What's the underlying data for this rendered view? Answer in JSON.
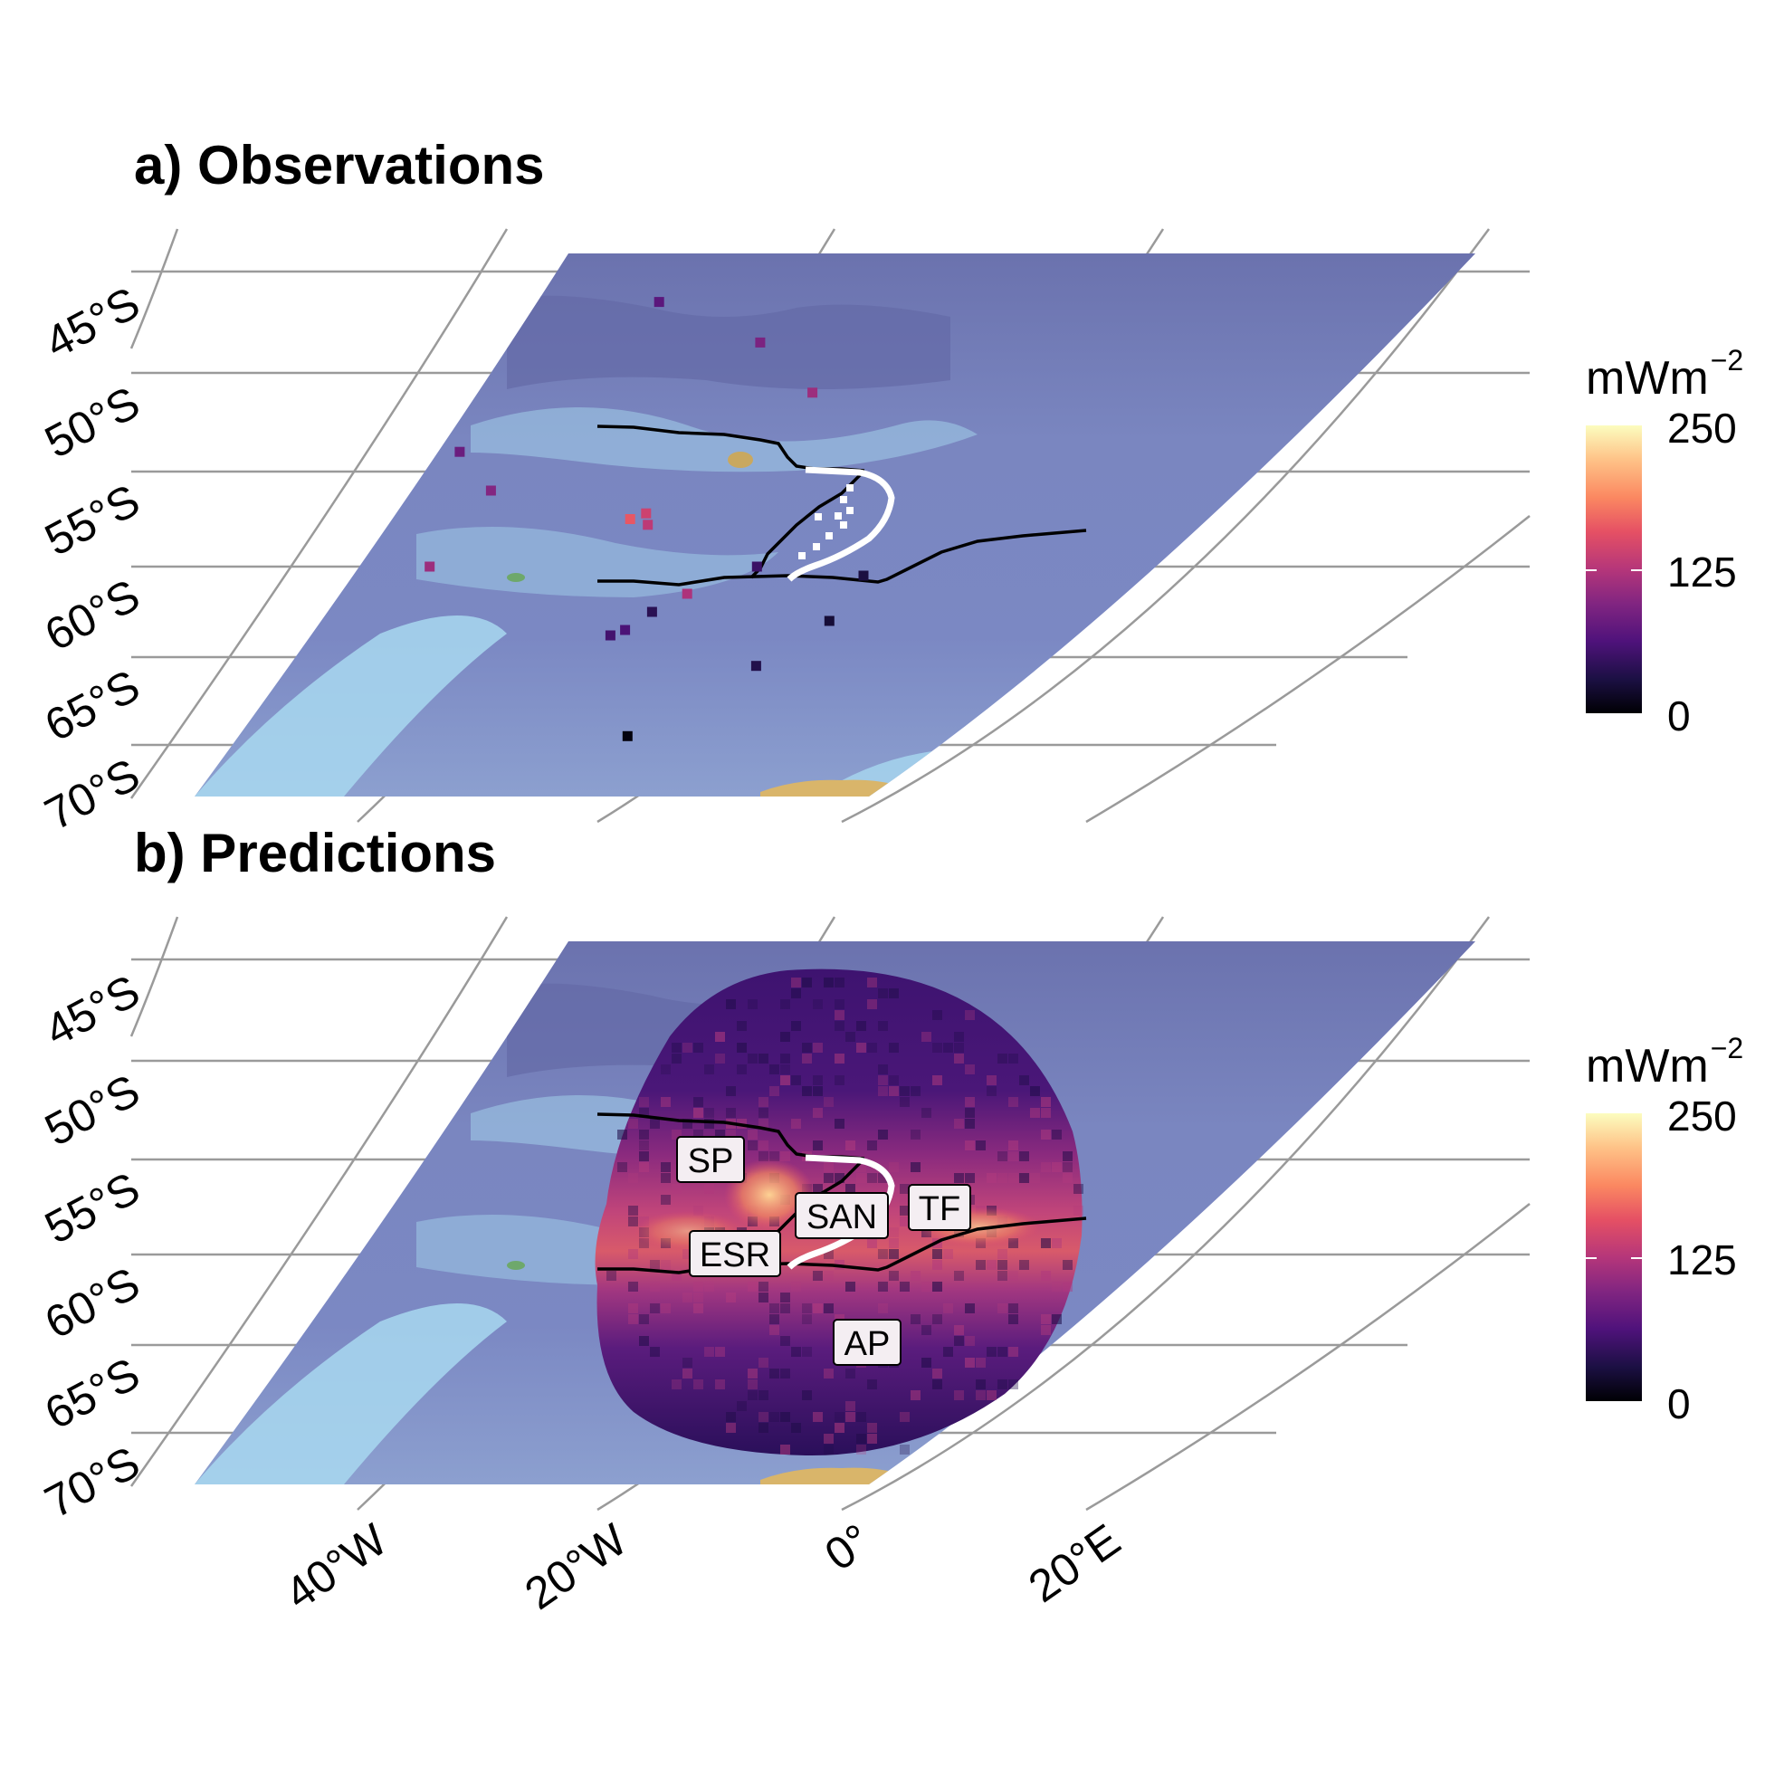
{
  "panels": [
    {
      "title": "a) Observations"
    },
    {
      "title": "b) Predictions"
    }
  ],
  "legend": {
    "unit": "mWm",
    "unit_exponent": "−2",
    "ticks": [
      "250",
      "125",
      "0"
    ],
    "colormap": [
      "#000004",
      "#1c1044",
      "#4f127b",
      "#812581",
      "#b5367a",
      "#e55064",
      "#fb8861",
      "#fec287",
      "#fcfdbf"
    ]
  },
  "axes": {
    "lat_labels": [
      "45°S",
      "50°S",
      "55°S",
      "60°S",
      "65°S",
      "70°S"
    ],
    "lon_labels": [
      "40°W",
      "20°W",
      "0°",
      "20°E"
    ]
  },
  "region_labels": [
    "SP",
    "SAN",
    "TF",
    "ESR",
    "AP"
  ],
  "colors": {
    "ocean_deep": "#6c74b0",
    "ocean_mid": "#7e8cc4",
    "shelf": "#a5d6ee",
    "boundary_line": "#000000",
    "arc_line": "#ffffff",
    "graticule": "#999999"
  },
  "chart_data": {
    "type": "heatmap",
    "colorbar_range": [
      0,
      250
    ],
    "colorbar_ticks": [
      0,
      125,
      250
    ],
    "observations": [
      {
        "lon": -10.0,
        "lat": -46.5,
        "value": 70
      },
      {
        "lon": -2.5,
        "lat": -48.5,
        "value": 90
      },
      {
        "lon": 2.5,
        "lat": -51.0,
        "value": 110
      },
      {
        "lon": -20.0,
        "lat": -54.0,
        "value": 80
      },
      {
        "lon": -17.0,
        "lat": -56.0,
        "value": 95
      },
      {
        "lon": -20.0,
        "lat": -60.0,
        "value": 110
      },
      {
        "lon": -6.0,
        "lat": -57.5,
        "value": 160
      },
      {
        "lon": -5.0,
        "lat": -57.2,
        "value": 140
      },
      {
        "lon": -4.5,
        "lat": -57.8,
        "value": 130
      },
      {
        "lon": 5.0,
        "lat": -60.0,
        "value": 50
      },
      {
        "lon": 13.0,
        "lat": -60.5,
        "value": 30
      },
      {
        "lon": 1.0,
        "lat": -61.5,
        "value": 120
      },
      {
        "lon": -1.0,
        "lat": -62.5,
        "value": 40
      },
      {
        "lon": 12.5,
        "lat": -63.0,
        "value": 25
      },
      {
        "lon": -2.5,
        "lat": -63.5,
        "value": 60
      },
      {
        "lon": -3.5,
        "lat": -63.8,
        "value": 55
      },
      {
        "lon": 9.0,
        "lat": -65.5,
        "value": 35
      },
      {
        "lon": 2.0,
        "lat": -69.5,
        "value": 5
      }
    ],
    "prediction_bands": [
      {
        "lat_range": [
          -44,
          -48
        ],
        "value": 70
      },
      {
        "lat_range": [
          -48,
          -52
        ],
        "value": 80
      },
      {
        "lat_range": [
          -52,
          -55
        ],
        "value": 110
      },
      {
        "lat_range": [
          -55,
          -58
        ],
        "value": 150
      },
      {
        "lat_range": [
          -58,
          -61
        ],
        "value": 165
      },
      {
        "lat_range": [
          -61,
          -64
        ],
        "value": 130
      },
      {
        "lat_range": [
          -64,
          -67
        ],
        "value": 85
      },
      {
        "lat_range": [
          -67,
          -70
        ],
        "value": 65
      }
    ]
  }
}
